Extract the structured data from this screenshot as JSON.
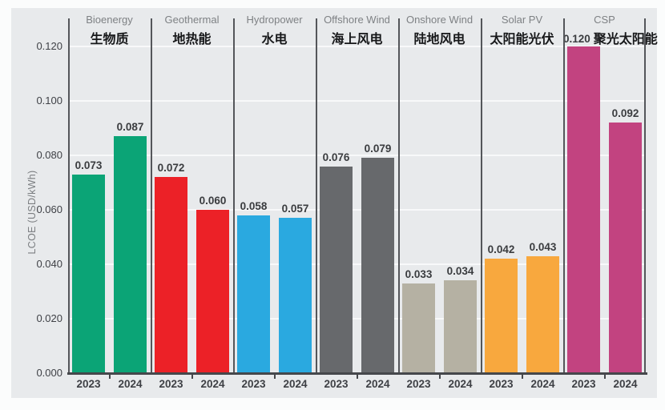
{
  "chart_data": {
    "type": "bar",
    "title": "",
    "ylabel": "LCOE (USD/kWh)",
    "ylim": [
      0,
      0.12
    ],
    "yticks": [
      0,
      0.02,
      0.04,
      0.06,
      0.08,
      0.1,
      0.12
    ],
    "ytick_labels": [
      "0.000",
      "0.020",
      "0.040",
      "0.060",
      "0.080",
      "0.100",
      "0.120"
    ],
    "x_years": [
      "2023",
      "2024"
    ],
    "grid": true,
    "legend_position": "none",
    "categories": [
      {
        "name_en": "Bioenergy",
        "name_zh": "生物质",
        "color": "#0ba476",
        "values": [
          0.073,
          0.087
        ],
        "value_labels": [
          "0.073",
          "0.087"
        ]
      },
      {
        "name_en": "Geothermal",
        "name_zh": "地热能",
        "color": "#ec2127",
        "values": [
          0.072,
          0.06
        ],
        "value_labels": [
          "0.072",
          "0.060"
        ]
      },
      {
        "name_en": "Hydropower",
        "name_zh": "水电",
        "color": "#2aa9e0",
        "values": [
          0.058,
          0.057
        ],
        "value_labels": [
          "0.058",
          "0.057"
        ]
      },
      {
        "name_en": "Offshore Wind",
        "name_zh": "海上风电",
        "color": "#67696c",
        "values": [
          0.076,
          0.079
        ],
        "value_labels": [
          "0.076",
          "0.079"
        ]
      },
      {
        "name_en": "Onshore Wind",
        "name_zh": "陆地风电",
        "color": "#b5b1a3",
        "values": [
          0.033,
          0.034
        ],
        "value_labels": [
          "0.033",
          "0.034"
        ]
      },
      {
        "name_en": "Solar PV",
        "name_zh": "太阳能光伏",
        "color": "#f8a83e",
        "values": [
          0.042,
          0.043
        ],
        "value_labels": [
          "0.042",
          "0.043"
        ]
      },
      {
        "name_en": "CSP",
        "name_zh": "聚光太阳能",
        "color": "#c24380",
        "values": [
          0.12,
          0.092
        ],
        "value_labels": [
          "0.120",
          "0.092"
        ],
        "first_label_in_header": true
      }
    ]
  },
  "colors": {
    "card_background": "#e8eaec",
    "axis_line": "#45474b",
    "separator_line": "#54565a",
    "gridline": "#f8f9fa",
    "tick_text": "#3f4146",
    "value_label_text": "#3a3c3f",
    "header_en_text": "#7e8184",
    "header_zh_text": "#17181a"
  }
}
